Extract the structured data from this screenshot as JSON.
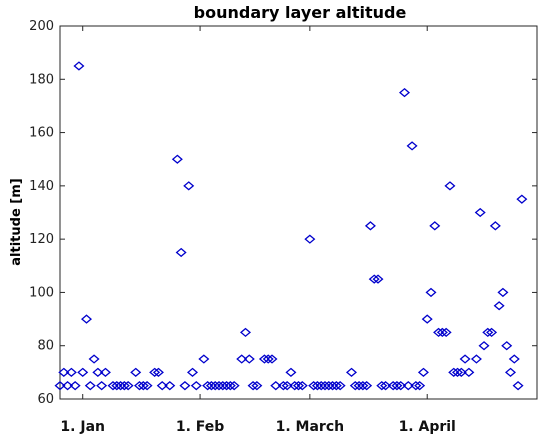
{
  "chart_data": {
    "type": "scatter",
    "title": "boundary layer altitude",
    "xlabel": "",
    "ylabel": "altitude [m]",
    "ylim": [
      60,
      200
    ],
    "yticks": [
      60,
      80,
      100,
      120,
      140,
      160,
      180,
      200
    ],
    "xlim": [
      "2019-12-26",
      "2019-04-30"
    ],
    "x_axis": {
      "min": "Dec 26",
      "max": "Apr 30",
      "ticks": [
        {
          "date": "Jan 1",
          "label": "1. Jan"
        },
        {
          "date": "Feb 1",
          "label": "1. Feb"
        },
        {
          "date": "Mar 1",
          "label": "1. March"
        },
        {
          "date": "Apr 1",
          "label": "1. April"
        }
      ]
    },
    "grid": false,
    "marker": "diamond",
    "color": "#0000cc",
    "points": [
      {
        "x": "Dec 26",
        "y": 65
      },
      {
        "x": "Dec 27",
        "y": 70
      },
      {
        "x": "Dec 28",
        "y": 65
      },
      {
        "x": "Dec 29",
        "y": 70
      },
      {
        "x": "Dec 30",
        "y": 65
      },
      {
        "x": "Dec 31",
        "y": 185
      },
      {
        "x": "Jan 1",
        "y": 70
      },
      {
        "x": "Jan 2",
        "y": 90
      },
      {
        "x": "Jan 3",
        "y": 65
      },
      {
        "x": "Jan 4",
        "y": 75
      },
      {
        "x": "Jan 5",
        "y": 70
      },
      {
        "x": "Jan 6",
        "y": 65
      },
      {
        "x": "Jan 7",
        "y": 70
      },
      {
        "x": "Jan 9",
        "y": 65
      },
      {
        "x": "Jan 10",
        "y": 65
      },
      {
        "x": "Jan 11",
        "y": 65
      },
      {
        "x": "Jan 12",
        "y": 65
      },
      {
        "x": "Jan 13",
        "y": 65
      },
      {
        "x": "Jan 15",
        "y": 70
      },
      {
        "x": "Jan 16",
        "y": 65
      },
      {
        "x": "Jan 17",
        "y": 65
      },
      {
        "x": "Jan 18",
        "y": 65
      },
      {
        "x": "Jan 20",
        "y": 70
      },
      {
        "x": "Jan 21",
        "y": 70
      },
      {
        "x": "Jan 22",
        "y": 65
      },
      {
        "x": "Jan 24",
        "y": 65
      },
      {
        "x": "Jan 26",
        "y": 150
      },
      {
        "x": "Jan 27",
        "y": 115
      },
      {
        "x": "Jan 28",
        "y": 65
      },
      {
        "x": "Jan 29",
        "y": 140
      },
      {
        "x": "Jan 30",
        "y": 70
      },
      {
        "x": "Jan 31",
        "y": 65
      },
      {
        "x": "Feb 2",
        "y": 75
      },
      {
        "x": "Feb 3",
        "y": 65
      },
      {
        "x": "Feb 4",
        "y": 65
      },
      {
        "x": "Feb 5",
        "y": 65
      },
      {
        "x": "Feb 6",
        "y": 65
      },
      {
        "x": "Feb 7",
        "y": 65
      },
      {
        "x": "Feb 8",
        "y": 65
      },
      {
        "x": "Feb 9",
        "y": 65
      },
      {
        "x": "Feb 10",
        "y": 65
      },
      {
        "x": "Feb 12",
        "y": 75
      },
      {
        "x": "Feb 13",
        "y": 85
      },
      {
        "x": "Feb 14",
        "y": 75
      },
      {
        "x": "Feb 15",
        "y": 65
      },
      {
        "x": "Feb 16",
        "y": 65
      },
      {
        "x": "Feb 18",
        "y": 75
      },
      {
        "x": "Feb 19",
        "y": 75
      },
      {
        "x": "Feb 20",
        "y": 75
      },
      {
        "x": "Feb 21",
        "y": 65
      },
      {
        "x": "Feb 23",
        "y": 65
      },
      {
        "x": "Feb 24",
        "y": 65
      },
      {
        "x": "Feb 25",
        "y": 70
      },
      {
        "x": "Feb 26",
        "y": 65
      },
      {
        "x": "Feb 27",
        "y": 65
      },
      {
        "x": "Feb 28",
        "y": 65
      },
      {
        "x": "Mar 1",
        "y": 120
      },
      {
        "x": "Mar 2",
        "y": 65
      },
      {
        "x": "Mar 3",
        "y": 65
      },
      {
        "x": "Mar 4",
        "y": 65
      },
      {
        "x": "Mar 5",
        "y": 65
      },
      {
        "x": "Mar 6",
        "y": 65
      },
      {
        "x": "Mar 7",
        "y": 65
      },
      {
        "x": "Mar 8",
        "y": 65
      },
      {
        "x": "Mar 9",
        "y": 65
      },
      {
        "x": "Mar 12",
        "y": 70
      },
      {
        "x": "Mar 13",
        "y": 65
      },
      {
        "x": "Mar 14",
        "y": 65
      },
      {
        "x": "Mar 15",
        "y": 65
      },
      {
        "x": "Mar 16",
        "y": 65
      },
      {
        "x": "Mar 17",
        "y": 125
      },
      {
        "x": "Mar 18",
        "y": 105
      },
      {
        "x": "Mar 19",
        "y": 105
      },
      {
        "x": "Mar 20",
        "y": 65
      },
      {
        "x": "Mar 21",
        "y": 65
      },
      {
        "x": "Mar 23",
        "y": 65
      },
      {
        "x": "Mar 24",
        "y": 65
      },
      {
        "x": "Mar 25",
        "y": 65
      },
      {
        "x": "Mar 26",
        "y": 175
      },
      {
        "x": "Mar 27",
        "y": 65
      },
      {
        "x": "Mar 28",
        "y": 155
      },
      {
        "x": "Mar 29",
        "y": 65
      },
      {
        "x": "Mar 30",
        "y": 65
      },
      {
        "x": "Mar 31",
        "y": 70
      },
      {
        "x": "Apr 1",
        "y": 90
      },
      {
        "x": "Apr 2",
        "y": 100
      },
      {
        "x": "Apr 3",
        "y": 125
      },
      {
        "x": "Apr 4",
        "y": 85
      },
      {
        "x": "Apr 5",
        "y": 85
      },
      {
        "x": "Apr 6",
        "y": 85
      },
      {
        "x": "Apr 7",
        "y": 140
      },
      {
        "x": "Apr 8",
        "y": 70
      },
      {
        "x": "Apr 9",
        "y": 70
      },
      {
        "x": "Apr 10",
        "y": 70
      },
      {
        "x": "Apr 11",
        "y": 75
      },
      {
        "x": "Apr 12",
        "y": 70
      },
      {
        "x": "Apr 14",
        "y": 75
      },
      {
        "x": "Apr 15",
        "y": 130
      },
      {
        "x": "Apr 16",
        "y": 80
      },
      {
        "x": "Apr 17",
        "y": 85
      },
      {
        "x": "Apr 18",
        "y": 85
      },
      {
        "x": "Apr 19",
        "y": 125
      },
      {
        "x": "Apr 20",
        "y": 95
      },
      {
        "x": "Apr 21",
        "y": 100
      },
      {
        "x": "Apr 22",
        "y": 80
      },
      {
        "x": "Apr 23",
        "y": 70
      },
      {
        "x": "Apr 24",
        "y": 75
      },
      {
        "x": "Apr 25",
        "y": 65
      },
      {
        "x": "Apr 26",
        "y": 135
      }
    ]
  }
}
